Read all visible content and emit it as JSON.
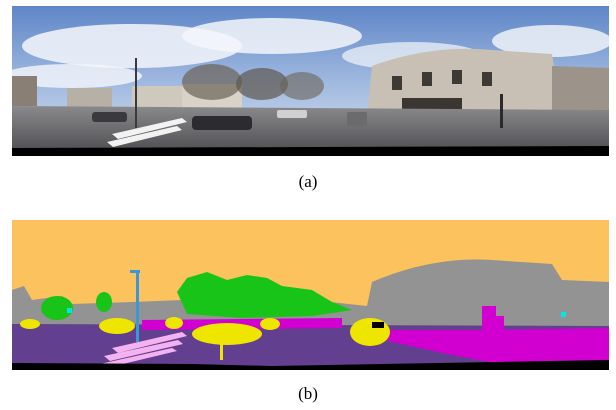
{
  "figure": {
    "panels": [
      {
        "id": "a",
        "caption": "(a)",
        "kind": "equirectangular street photo"
      },
      {
        "id": "b",
        "caption": "(b)",
        "kind": "semantic segmentation map"
      }
    ],
    "segmentation_colors": {
      "sky": "#fbc25d",
      "building": "#939393",
      "vegetation": "#17c417",
      "road": "#633f8f",
      "sidewalk": "#d100d1",
      "car": "#efe600",
      "lane_marking": "#f5b2f0",
      "pole": "#3a98d8",
      "sign": "#00e5e5",
      "void": "#000000"
    }
  }
}
